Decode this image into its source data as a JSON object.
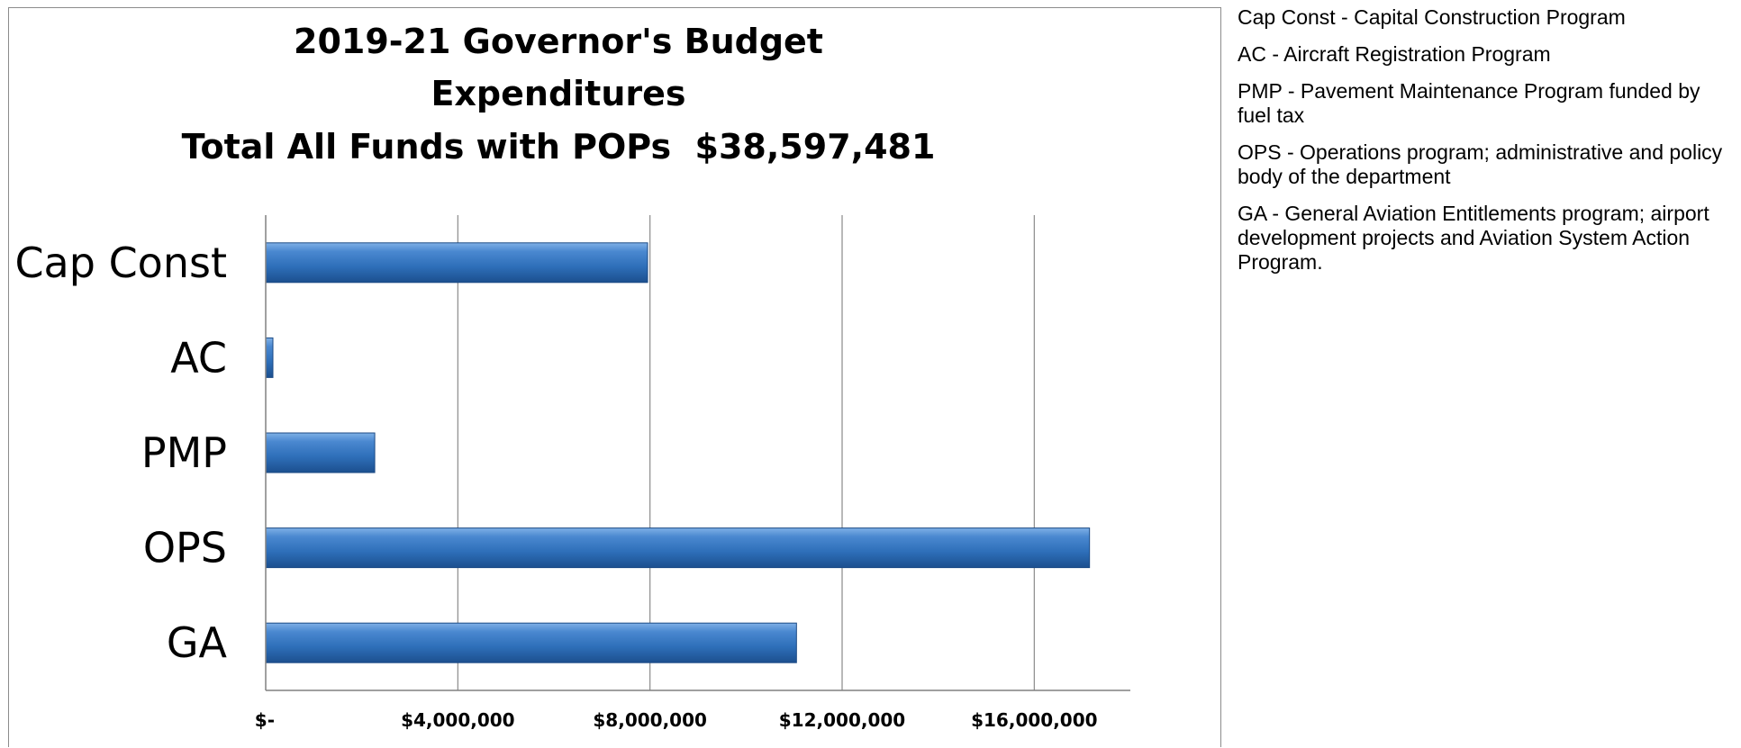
{
  "chart_data": {
    "type": "bar",
    "orientation": "horizontal",
    "title": [
      "2019-21 Governor's Budget",
      "Expenditures",
      "Total All Funds with POPs  $38,597,481"
    ],
    "categories": [
      "Cap Const",
      "AC",
      "PMP",
      "OPS",
      "GA"
    ],
    "values": [
      7950000,
      150000,
      2270000,
      17150000,
      11050000
    ],
    "xlim": [
      0,
      18000000
    ],
    "xticks": [
      0,
      4000000,
      8000000,
      12000000,
      16000000
    ],
    "xtick_labels": [
      "$-",
      "$4,000,000",
      "$8,000,000",
      "$12,000,000",
      "$16,000,000"
    ],
    "xlabel": "",
    "ylabel": "",
    "grid": "vertical major gridlines",
    "legend": "none",
    "bar_color": "#2e6fb9"
  },
  "notes": [
    "Cap Const - Capital Construction Program",
    "AC - Aircraft Registration Program",
    "PMP - Pavement Maintenance Program  funded by fuel tax",
    "OPS - Operations program; administrative  and policy body of the department",
    "GA - General Aviation Entitlements  program; airport development  projects and Aviation System Action Program."
  ]
}
